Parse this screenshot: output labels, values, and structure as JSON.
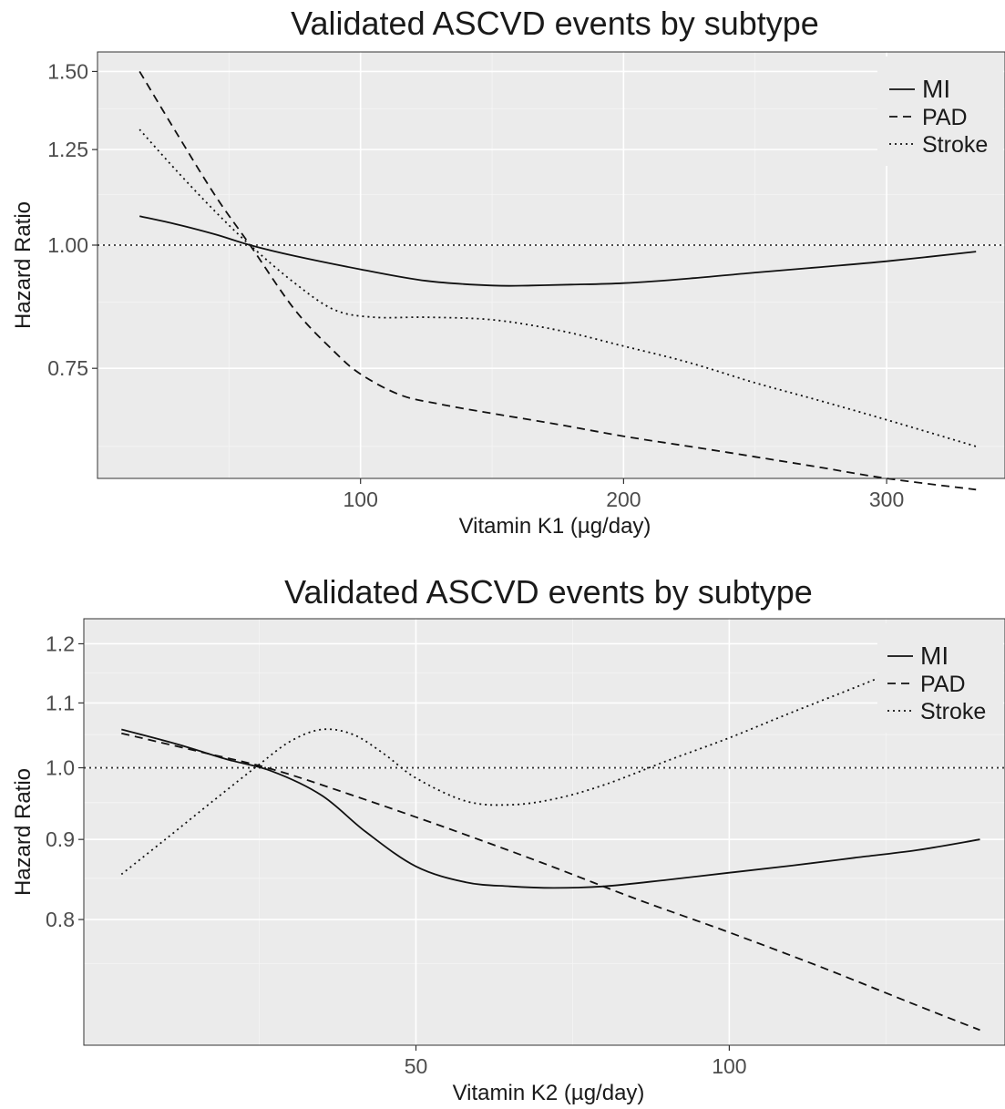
{
  "chart_data": [
    {
      "type": "line",
      "title": "Validated ASCVD events by subtype",
      "xlabel": "Vitamin K1 (µg/day)",
      "ylabel": "Hazard Ratio",
      "xlim": [
        0,
        345
      ],
      "ylim": [
        0.58,
        1.57
      ],
      "y_scale": "log",
      "xticks": [
        100,
        200,
        300
      ],
      "xtick_labels": [
        "100",
        "200",
        "300"
      ],
      "yticks": [
        0.75,
        1.0,
        1.25,
        1.5
      ],
      "ytick_labels": [
        "0.75",
        "1.00",
        "1.25",
        "1.50"
      ],
      "reference_line": 1.0,
      "legend_position": "top-right",
      "grid": true,
      "series": [
        {
          "name": "MI",
          "linestyle": "solid",
          "x": [
            16,
            30,
            45,
            58,
            75,
            100,
            125,
            150,
            165,
            180,
            200,
            225,
            250,
            275,
            300,
            334
          ],
          "y": [
            1.07,
            1.05,
            1.025,
            1.0,
            0.975,
            0.945,
            0.92,
            0.91,
            0.91,
            0.912,
            0.915,
            0.925,
            0.938,
            0.95,
            0.963,
            0.985
          ]
        },
        {
          "name": "PAD",
          "linestyle": "dashed",
          "x": [
            16,
            30,
            45,
            58,
            75,
            90,
            100,
            115,
            130,
            150,
            175,
            200,
            225,
            250,
            275,
            300,
            334
          ],
          "y": [
            1.5,
            1.3,
            1.12,
            1.0,
            0.86,
            0.78,
            0.74,
            0.705,
            0.69,
            0.675,
            0.658,
            0.64,
            0.625,
            0.61,
            0.595,
            0.58,
            0.565
          ]
        },
        {
          "name": "Stroke",
          "linestyle": "dotted",
          "x": [
            16,
            30,
            45,
            58,
            75,
            90,
            105,
            125,
            150,
            175,
            200,
            225,
            250,
            275,
            300,
            334
          ],
          "y": [
            1.31,
            1.19,
            1.08,
            1.0,
            0.915,
            0.86,
            0.845,
            0.845,
            0.84,
            0.82,
            0.79,
            0.76,
            0.725,
            0.695,
            0.665,
            0.625
          ]
        }
      ]
    },
    {
      "type": "line",
      "title": "Validated ASCVD events by subtype",
      "xlabel": "Vitamin K2 (µg/day)",
      "ylabel": "Hazard Ratio",
      "xlim": [
        -3,
        144
      ],
      "ylim": [
        0.665,
        1.245
      ],
      "y_scale": "log",
      "xticks": [
        50,
        100
      ],
      "xtick_labels": [
        "50",
        "100"
      ],
      "yticks": [
        0.8,
        0.9,
        1.0,
        1.1,
        1.2
      ],
      "ytick_labels": [
        "0.8",
        "0.9",
        "1.0",
        "1.1",
        "1.2"
      ],
      "reference_line": 1.0,
      "legend_position": "top-right",
      "grid": true,
      "series": [
        {
          "name": "MI",
          "linestyle": "solid",
          "x": [
            3,
            12,
            20,
            27,
            35,
            42,
            50,
            58,
            65,
            72,
            80,
            90,
            100,
            110,
            120,
            130,
            140
          ],
          "y": [
            1.058,
            1.035,
            1.012,
            0.995,
            0.96,
            0.91,
            0.865,
            0.845,
            0.84,
            0.838,
            0.84,
            0.848,
            0.857,
            0.866,
            0.876,
            0.886,
            0.9
          ]
        },
        {
          "name": "PAD",
          "linestyle": "dashed",
          "x": [
            3,
            15,
            27,
            40,
            55,
            70,
            85,
            100,
            115,
            130,
            140
          ],
          "y": [
            1.052,
            1.025,
            0.998,
            0.96,
            0.915,
            0.87,
            0.825,
            0.785,
            0.745,
            0.705,
            0.68
          ]
        },
        {
          "name": "Stroke",
          "linestyle": "dotted",
          "x": [
            3,
            10,
            18,
            25,
            30,
            35,
            40,
            45,
            50,
            58,
            65,
            72,
            80,
            90,
            100,
            110,
            120,
            127
          ],
          "y": [
            0.855,
            0.9,
            0.955,
            1.005,
            1.04,
            1.058,
            1.05,
            1.02,
            0.985,
            0.952,
            0.947,
            0.955,
            0.975,
            1.01,
            1.045,
            1.085,
            1.125,
            1.155
          ]
        }
      ]
    }
  ]
}
